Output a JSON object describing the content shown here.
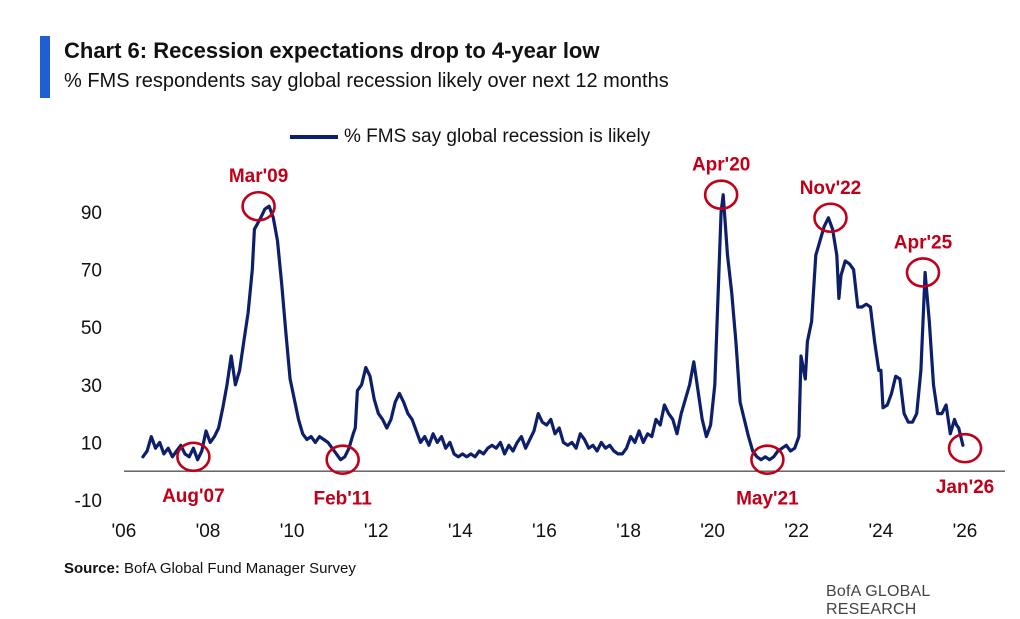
{
  "header": {
    "title": "Chart 6: Recession expectations drop to 4-year low",
    "subtitle": "% FMS respondents say global recession likely over next 12 months"
  },
  "footer": {
    "source_label": "Source:",
    "source_text": " BofA Global Fund Manager Survey",
    "brand": "BofA GLOBAL RESEARCH"
  },
  "colors": {
    "line": "#0d1f6b",
    "annotation": "#c00018",
    "accent": "#1f5fd1"
  },
  "chart_data": {
    "type": "line",
    "ylim": [
      -10,
      100
    ],
    "xlim": [
      2006,
      2027
    ],
    "y_ticks": [
      -10,
      10,
      30,
      50,
      70,
      90
    ],
    "x_ticks": [
      {
        "value": 2006,
        "label": "'06"
      },
      {
        "value": 2008,
        "label": "'08"
      },
      {
        "value": 2010,
        "label": "'10"
      },
      {
        "value": 2012,
        "label": "'12"
      },
      {
        "value": 2014,
        "label": "'14"
      },
      {
        "value": 2016,
        "label": "'16"
      },
      {
        "value": 2018,
        "label": "'18"
      },
      {
        "value": 2020,
        "label": "'20"
      },
      {
        "value": 2022,
        "label": "'22"
      },
      {
        "value": 2024,
        "label": "'24"
      },
      {
        "value": 2026,
        "label": "'26"
      }
    ],
    "series": [
      {
        "name": "% FMS say global recession is likely",
        "points": [
          [
            2006.5,
            5
          ],
          [
            2006.6,
            7
          ],
          [
            2006.7,
            12
          ],
          [
            2006.8,
            8
          ],
          [
            2006.9,
            10
          ],
          [
            2007.0,
            6
          ],
          [
            2007.1,
            8
          ],
          [
            2007.2,
            5
          ],
          [
            2007.3,
            7
          ],
          [
            2007.4,
            9
          ],
          [
            2007.5,
            6
          ],
          [
            2007.6,
            5
          ],
          [
            2007.7,
            8
          ],
          [
            2007.8,
            4
          ],
          [
            2007.9,
            7
          ],
          [
            2008.0,
            14
          ],
          [
            2008.1,
            10
          ],
          [
            2008.2,
            12
          ],
          [
            2008.3,
            15
          ],
          [
            2008.4,
            22
          ],
          [
            2008.5,
            30
          ],
          [
            2008.6,
            40
          ],
          [
            2008.7,
            30
          ],
          [
            2008.8,
            35
          ],
          [
            2008.9,
            45
          ],
          [
            2009.0,
            55
          ],
          [
            2009.1,
            70
          ],
          [
            2009.15,
            84
          ],
          [
            2009.3,
            88
          ],
          [
            2009.4,
            91
          ],
          [
            2009.5,
            92
          ],
          [
            2009.6,
            88
          ],
          [
            2009.7,
            80
          ],
          [
            2009.8,
            65
          ],
          [
            2009.9,
            48
          ],
          [
            2010.0,
            32
          ],
          [
            2010.1,
            25
          ],
          [
            2010.2,
            18
          ],
          [
            2010.3,
            13
          ],
          [
            2010.4,
            11
          ],
          [
            2010.5,
            12
          ],
          [
            2010.6,
            10
          ],
          [
            2010.7,
            12
          ],
          [
            2010.8,
            11
          ],
          [
            2010.9,
            10
          ],
          [
            2011.0,
            8
          ],
          [
            2011.1,
            6
          ],
          [
            2011.2,
            4
          ],
          [
            2011.3,
            5
          ],
          [
            2011.4,
            8
          ],
          [
            2011.5,
            13
          ],
          [
            2011.55,
            15
          ],
          [
            2011.6,
            28
          ],
          [
            2011.7,
            30
          ],
          [
            2011.8,
            36
          ],
          [
            2011.9,
            33
          ],
          [
            2012.0,
            25
          ],
          [
            2012.1,
            20
          ],
          [
            2012.2,
            18
          ],
          [
            2012.3,
            15
          ],
          [
            2012.4,
            18
          ],
          [
            2012.5,
            24
          ],
          [
            2012.6,
            27
          ],
          [
            2012.7,
            24
          ],
          [
            2012.8,
            20
          ],
          [
            2012.9,
            18
          ],
          [
            2013.0,
            14
          ],
          [
            2013.1,
            10
          ],
          [
            2013.2,
            12
          ],
          [
            2013.3,
            9
          ],
          [
            2013.4,
            13
          ],
          [
            2013.5,
            10
          ],
          [
            2013.6,
            12
          ],
          [
            2013.7,
            8
          ],
          [
            2013.8,
            10
          ],
          [
            2013.9,
            6
          ],
          [
            2014.0,
            5
          ],
          [
            2014.1,
            6
          ],
          [
            2014.2,
            5
          ],
          [
            2014.3,
            6
          ],
          [
            2014.4,
            5
          ],
          [
            2014.5,
            7
          ],
          [
            2014.6,
            6
          ],
          [
            2014.7,
            8
          ],
          [
            2014.8,
            9
          ],
          [
            2014.9,
            8
          ],
          [
            2015.0,
            10
          ],
          [
            2015.1,
            6
          ],
          [
            2015.2,
            9
          ],
          [
            2015.3,
            7
          ],
          [
            2015.4,
            10
          ],
          [
            2015.5,
            12
          ],
          [
            2015.6,
            8
          ],
          [
            2015.7,
            11
          ],
          [
            2015.8,
            14
          ],
          [
            2015.9,
            20
          ],
          [
            2016.0,
            17
          ],
          [
            2016.1,
            16
          ],
          [
            2016.2,
            18
          ],
          [
            2016.3,
            13
          ],
          [
            2016.4,
            15
          ],
          [
            2016.5,
            10
          ],
          [
            2016.6,
            9
          ],
          [
            2016.7,
            10
          ],
          [
            2016.8,
            8
          ],
          [
            2016.9,
            13
          ],
          [
            2017.0,
            11
          ],
          [
            2017.1,
            8
          ],
          [
            2017.2,
            9
          ],
          [
            2017.3,
            7
          ],
          [
            2017.4,
            10
          ],
          [
            2017.5,
            8
          ],
          [
            2017.6,
            9
          ],
          [
            2017.7,
            7
          ],
          [
            2017.8,
            6
          ],
          [
            2017.9,
            6
          ],
          [
            2018.0,
            8
          ],
          [
            2018.1,
            12
          ],
          [
            2018.2,
            10
          ],
          [
            2018.3,
            14
          ],
          [
            2018.4,
            10
          ],
          [
            2018.5,
            13
          ],
          [
            2018.6,
            12
          ],
          [
            2018.7,
            18
          ],
          [
            2018.8,
            16
          ],
          [
            2018.9,
            23
          ],
          [
            2019.0,
            20
          ],
          [
            2019.1,
            18
          ],
          [
            2019.2,
            13
          ],
          [
            2019.3,
            20
          ],
          [
            2019.4,
            25
          ],
          [
            2019.5,
            30
          ],
          [
            2019.6,
            38
          ],
          [
            2019.7,
            28
          ],
          [
            2019.8,
            18
          ],
          [
            2019.9,
            12
          ],
          [
            2020.0,
            16
          ],
          [
            2020.1,
            30
          ],
          [
            2020.2,
            70
          ],
          [
            2020.25,
            90
          ],
          [
            2020.3,
            96
          ],
          [
            2020.4,
            75
          ],
          [
            2020.5,
            62
          ],
          [
            2020.6,
            45
          ],
          [
            2020.7,
            24
          ],
          [
            2020.8,
            18
          ],
          [
            2020.9,
            12
          ],
          [
            2021.0,
            7
          ],
          [
            2021.1,
            5
          ],
          [
            2021.2,
            4
          ],
          [
            2021.3,
            5
          ],
          [
            2021.4,
            4
          ],
          [
            2021.5,
            5
          ],
          [
            2021.6,
            7
          ],
          [
            2021.7,
            8
          ],
          [
            2021.8,
            9
          ],
          [
            2021.9,
            7
          ],
          [
            2022.0,
            8
          ],
          [
            2022.1,
            12
          ],
          [
            2022.15,
            40
          ],
          [
            2022.25,
            32
          ],
          [
            2022.3,
            45
          ],
          [
            2022.4,
            52
          ],
          [
            2022.5,
            75
          ],
          [
            2022.6,
            80
          ],
          [
            2022.7,
            85
          ],
          [
            2022.8,
            88
          ],
          [
            2022.9,
            84
          ],
          [
            2023.0,
            75
          ],
          [
            2023.05,
            60
          ],
          [
            2023.1,
            68
          ],
          [
            2023.2,
            73
          ],
          [
            2023.3,
            72
          ],
          [
            2023.4,
            70
          ],
          [
            2023.5,
            57
          ],
          [
            2023.6,
            57
          ],
          [
            2023.7,
            58
          ],
          [
            2023.8,
            57
          ],
          [
            2023.9,
            45
          ],
          [
            2024.0,
            35
          ],
          [
            2024.05,
            35
          ],
          [
            2024.1,
            22
          ],
          [
            2024.2,
            23
          ],
          [
            2024.3,
            27
          ],
          [
            2024.4,
            33
          ],
          [
            2024.5,
            32
          ],
          [
            2024.6,
            20
          ],
          [
            2024.7,
            17
          ],
          [
            2024.8,
            17
          ],
          [
            2024.9,
            20
          ],
          [
            2025.0,
            35
          ],
          [
            2025.1,
            69
          ],
          [
            2025.2,
            52
          ],
          [
            2025.3,
            30
          ],
          [
            2025.4,
            20
          ],
          [
            2025.5,
            20
          ],
          [
            2025.6,
            23
          ],
          [
            2025.7,
            13
          ],
          [
            2025.8,
            18
          ],
          [
            2025.85,
            16
          ],
          [
            2025.9,
            15
          ],
          [
            2026.0,
            9
          ]
        ]
      }
    ],
    "annotations": [
      {
        "label": "Mar'09",
        "x": 2009.25,
        "y": 92,
        "position": "above"
      },
      {
        "label": "Aug'07",
        "x": 2007.7,
        "y": 5,
        "position": "below"
      },
      {
        "label": "Feb'11",
        "x": 2011.25,
        "y": 4,
        "position": "below"
      },
      {
        "label": "Apr'20",
        "x": 2020.25,
        "y": 96,
        "position": "above"
      },
      {
        "label": "May'21",
        "x": 2021.35,
        "y": 4,
        "position": "below"
      },
      {
        "label": "Nov'22",
        "x": 2022.85,
        "y": 88,
        "position": "above"
      },
      {
        "label": "Apr'25",
        "x": 2025.05,
        "y": 69,
        "position": "above"
      },
      {
        "label": "Jan'26",
        "x": 2026.05,
        "y": 8,
        "position": "below"
      }
    ],
    "legend_position": "top-center",
    "grid": false
  }
}
